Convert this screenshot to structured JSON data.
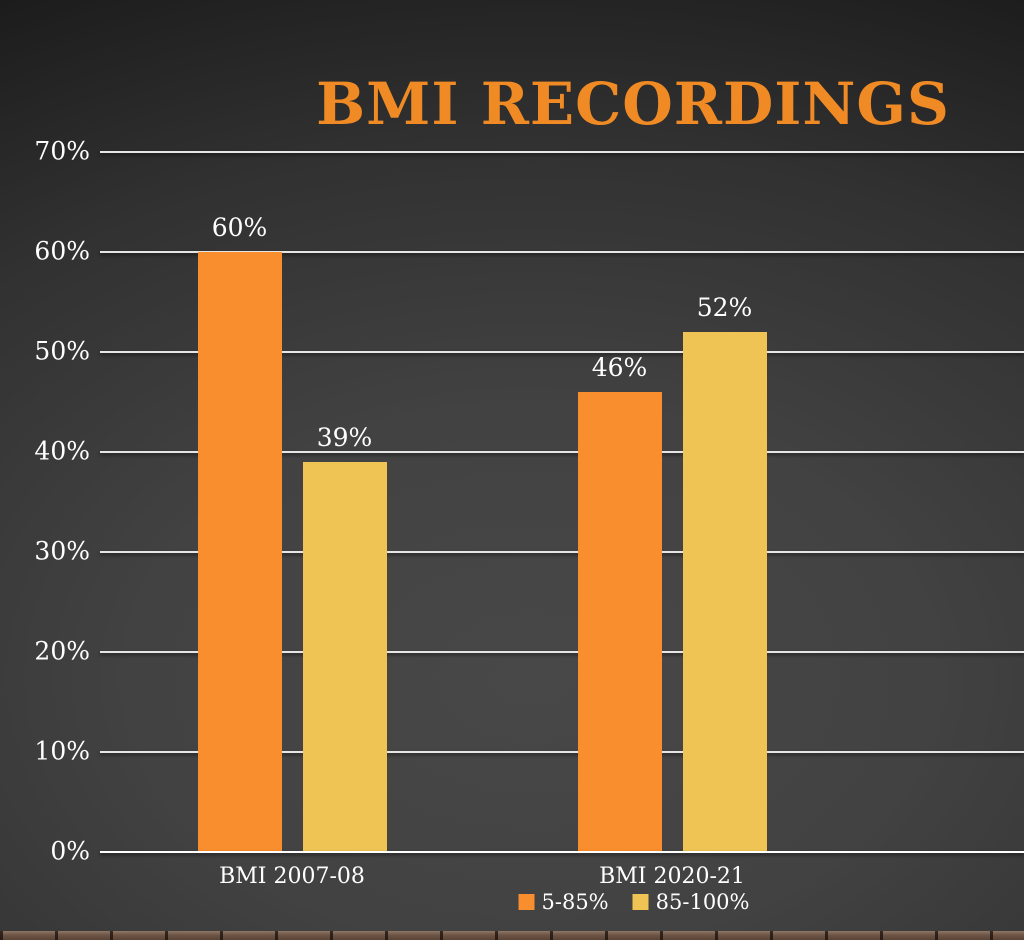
{
  "title": "BMI RECORDINGS",
  "colors": {
    "title": "#EF8A25",
    "gridline": "#E6E6E6",
    "text": "#FFFFFF",
    "background_center": "#474747",
    "background_edge": "#0D0D0D",
    "brick_strip": "#6E5445"
  },
  "chart_data": {
    "type": "bar",
    "title": "BMI RECORDINGS",
    "categories": [
      "BMI 2007-08",
      "BMI 2020-21"
    ],
    "series": [
      {
        "name": "5-85%",
        "color": "#F88E2D",
        "values": [
          60,
          46
        ],
        "labels": [
          "60%",
          "46%"
        ]
      },
      {
        "name": "85-100%",
        "color": "#EFC454",
        "values": [
          39,
          52
        ],
        "labels": [
          "39%",
          "52%"
        ]
      }
    ],
    "xlabel": "",
    "ylabel": "",
    "ymin": 0,
    "ymax": 70,
    "yticks": [
      {
        "value": 0,
        "label": "0%"
      },
      {
        "value": 10,
        "label": "10%"
      },
      {
        "value": 20,
        "label": "20%"
      },
      {
        "value": 30,
        "label": "30%"
      },
      {
        "value": 40,
        "label": "40%"
      },
      {
        "value": 50,
        "label": "50%"
      },
      {
        "value": 60,
        "label": "60%"
      },
      {
        "value": 70,
        "label": "70%"
      }
    ],
    "grid": true,
    "legend_position": "bottom"
  }
}
